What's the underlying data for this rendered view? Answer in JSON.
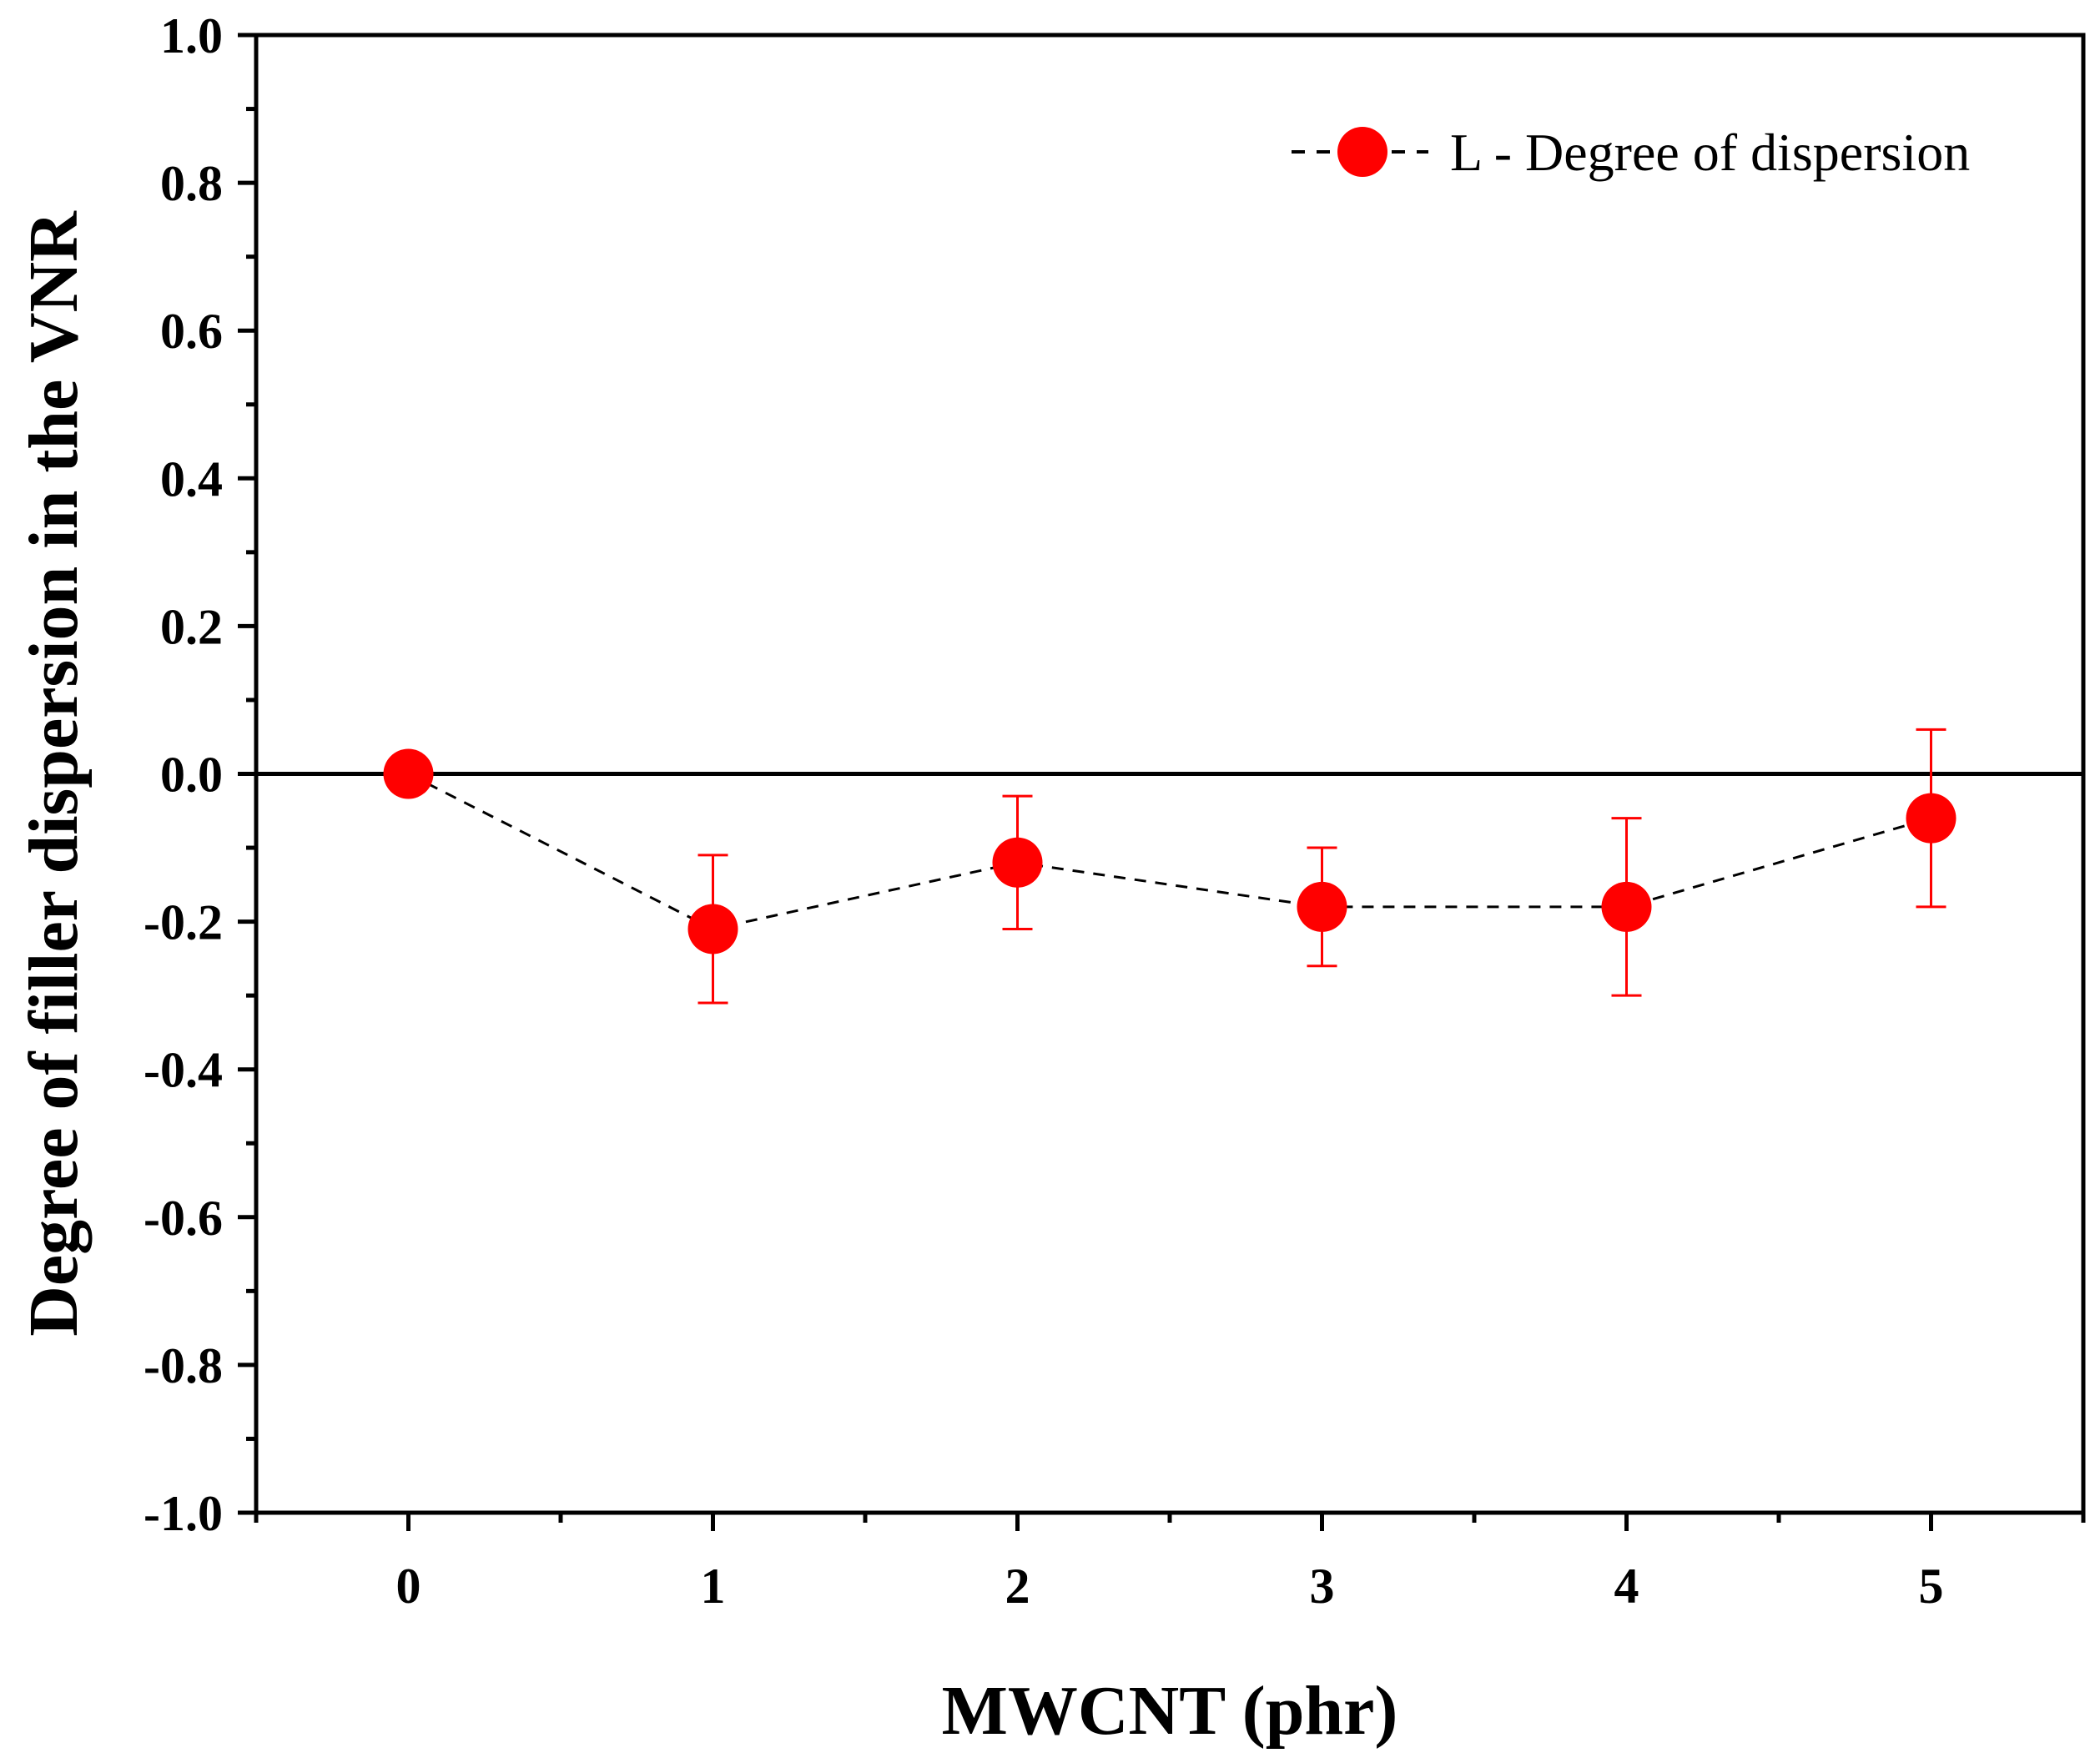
{
  "chart_data": {
    "type": "line",
    "title": "",
    "xlabel": "MWCNT (phr)",
    "ylabel": "Degree of filler dispersion in the VNR",
    "xlim": [
      -0.5,
      5.5
    ],
    "ylim": [
      -1.0,
      1.0
    ],
    "x_ticks": [
      0,
      1,
      2,
      3,
      4,
      5
    ],
    "x_tick_labels": [
      "0",
      "1",
      "2",
      "3",
      "4",
      "5"
    ],
    "y_ticks": [
      1.0,
      0.8,
      0.6,
      0.4,
      0.2,
      0.0,
      -0.2,
      -0.4,
      -0.6,
      -0.8,
      -1.0
    ],
    "y_tick_labels": [
      "1.0",
      "0.8",
      "0.6",
      "0.4",
      "0.2",
      "0.0",
      "-0.2",
      "-0.4",
      "-0.6",
      "-0.8",
      "-1.0"
    ],
    "y_minor_step": 0.1,
    "reference_line_y": 0.0,
    "grid": false,
    "legend_position": "top-right",
    "series": [
      {
        "name": "L - Degree of dispersion",
        "color": "#ff0000",
        "line_color": "#000000",
        "line_style": "dashed",
        "marker": "circle",
        "x": [
          0,
          1,
          2,
          3,
          4,
          5
        ],
        "y": [
          0.0,
          -0.21,
          -0.12,
          -0.18,
          -0.18,
          -0.06
        ],
        "error_lower": [
          0.0,
          -0.31,
          -0.21,
          -0.26,
          -0.3,
          -0.18
        ],
        "error_upper": [
          0.0,
          -0.11,
          -0.03,
          -0.1,
          -0.06,
          0.06
        ]
      }
    ]
  }
}
